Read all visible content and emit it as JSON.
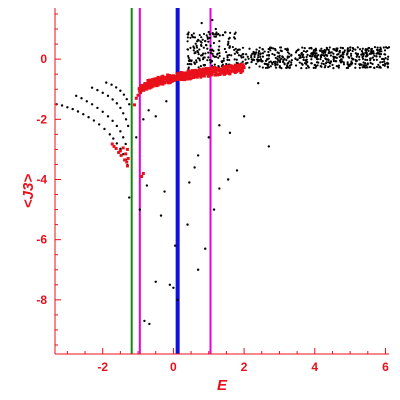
{
  "chart_data": {
    "type": "scatter",
    "xlabel": "E",
    "ylabel": "<J3>",
    "xlim": [
      -3.35,
      6.1
    ],
    "ylim": [
      -9.8,
      1.7
    ],
    "xticks": [
      -2,
      0,
      2,
      4,
      6
    ],
    "xtick_labels": [
      "-2",
      "0",
      "2",
      "4",
      "6"
    ],
    "yticks": [
      0,
      -2,
      -4,
      -6,
      -8
    ],
    "ytick_labels": [
      "0",
      "-2",
      "-4",
      "-6",
      "-8"
    ],
    "colors": {
      "axis": "#e8101a",
      "series_black": "#000000",
      "series_red": "#e8101a"
    },
    "vlines": [
      {
        "x": -1.18,
        "color": "#118811"
      },
      {
        "x": -0.95,
        "color": "#e400e4"
      },
      {
        "x": 0.12,
        "color": "#1010dd"
      },
      {
        "x": 1.05,
        "color": "#e400e4"
      }
    ],
    "series": [
      {
        "color": "#000000",
        "points": [
          [
            -3.3,
            -1.5
          ],
          [
            -3.15,
            -1.54
          ],
          [
            -3.0,
            -1.6
          ],
          [
            -2.85,
            -1.66
          ],
          [
            -2.7,
            -1.74
          ],
          [
            -2.55,
            -1.83
          ],
          [
            -2.4,
            -1.93
          ],
          [
            -2.25,
            -2.04
          ],
          [
            -2.1,
            -2.17
          ],
          [
            -1.95,
            -2.32
          ],
          [
            -1.8,
            -2.5
          ],
          [
            -1.7,
            -2.64
          ],
          [
            -1.6,
            -2.8
          ],
          [
            -1.5,
            -2.98
          ],
          [
            -1.42,
            -3.16
          ],
          [
            -1.35,
            -3.34
          ],
          [
            -1.3,
            -3.52
          ],
          [
            -2.75,
            -1.22
          ],
          [
            -2.6,
            -1.3
          ],
          [
            -2.45,
            -1.4
          ],
          [
            -2.3,
            -1.5
          ],
          [
            -2.15,
            -1.62
          ],
          [
            -2.0,
            -1.75
          ],
          [
            -1.85,
            -1.9
          ],
          [
            -1.72,
            -2.05
          ],
          [
            -1.6,
            -2.22
          ],
          [
            -1.5,
            -2.4
          ],
          [
            -1.42,
            -2.6
          ],
          [
            -1.35,
            -2.82
          ],
          [
            -2.3,
            -0.95
          ],
          [
            -2.15,
            -1.03
          ],
          [
            -2.0,
            -1.12
          ],
          [
            -1.85,
            -1.22
          ],
          [
            -1.72,
            -1.34
          ],
          [
            -1.6,
            -1.47
          ],
          [
            -1.5,
            -1.62
          ],
          [
            -1.42,
            -1.8
          ],
          [
            -1.34,
            -2.0
          ],
          [
            -1.28,
            -2.22
          ],
          [
            -1.9,
            -0.78
          ],
          [
            -1.75,
            -0.85
          ],
          [
            -1.62,
            -0.94
          ],
          [
            -1.5,
            -1.05
          ],
          [
            -1.4,
            -1.18
          ],
          [
            -1.32,
            -1.33
          ],
          [
            -1.25,
            -1.5
          ],
          [
            -1.25,
            -4.6
          ],
          [
            -1.05,
            -2.6
          ],
          [
            -0.85,
            -2.0
          ],
          [
            -0.7,
            -1.7
          ],
          [
            -0.5,
            -1.9
          ],
          [
            -0.2,
            -1.4
          ],
          [
            -0.95,
            -5.0
          ],
          [
            -0.82,
            -8.7
          ],
          [
            -0.75,
            -4.2
          ],
          [
            -0.68,
            -8.8
          ],
          [
            -0.5,
            -7.4
          ],
          [
            -0.35,
            -5.2
          ],
          [
            -0.25,
            -4.4
          ],
          [
            -0.1,
            -7.5
          ],
          [
            0.0,
            -7.6
          ],
          [
            0.12,
            -8.0
          ],
          [
            0.05,
            -6.2
          ],
          [
            0.4,
            -5.5
          ],
          [
            0.45,
            -4.1
          ],
          [
            0.6,
            -3.6
          ],
          [
            0.7,
            -7.0
          ],
          [
            0.9,
            -6.3
          ],
          [
            1.15,
            -5.0
          ],
          [
            1.3,
            -4.3
          ],
          [
            1.55,
            -4.0
          ],
          [
            1.8,
            -3.7
          ],
          [
            0.7,
            -3.2
          ],
          [
            1.0,
            -2.6
          ],
          [
            1.3,
            -2.2
          ],
          [
            1.6,
            -2.45
          ],
          [
            2.0,
            -1.9
          ],
          [
            2.7,
            -2.9
          ],
          [
            2.4,
            -0.8
          ],
          [
            0.8,
            1.2
          ],
          [
            1.1,
            1.3
          ],
          [
            1.2,
            1.0
          ],
          [
            1.4,
            0.8
          ],
          [
            0.9,
            0.6
          ],
          [
            1.0,
            0.9
          ]
        ]
      },
      {
        "color": "#e8101a",
        "points": [
          [
            -1.3,
            -3.0
          ],
          [
            -1.35,
            -3.15
          ],
          [
            -1.42,
            -2.95
          ],
          [
            -1.5,
            -3.05
          ],
          [
            -1.28,
            -3.3
          ],
          [
            -1.48,
            -3.2
          ],
          [
            -1.55,
            -3.1
          ],
          [
            -1.62,
            -2.97
          ],
          [
            -1.68,
            -2.9
          ],
          [
            -1.73,
            -2.82
          ],
          [
            -1.38,
            -3.35
          ],
          [
            -1.32,
            -3.42
          ],
          [
            -1.3,
            -3.55
          ],
          [
            -1.05,
            -1.3
          ],
          [
            -1.1,
            -1.52
          ],
          [
            -0.95,
            -1.05
          ],
          [
            -1.0,
            -1.2
          ],
          [
            -0.85,
            -3.8
          ],
          [
            -0.9,
            -3.9
          ],
          [
            -0.92,
            -1.0
          ],
          [
            -0.97,
            -0.98
          ],
          [
            -0.5,
            -0.72
          ],
          [
            -0.3,
            -0.66
          ],
          [
            0.0,
            -0.55
          ],
          [
            0.3,
            -0.5
          ],
          [
            0.6,
            -0.45
          ],
          [
            1.0,
            -0.38
          ],
          [
            1.4,
            -0.33
          ],
          [
            1.8,
            -0.3
          ],
          [
            2.0,
            -0.28
          ]
        ]
      }
    ],
    "band_black": {
      "x_from": 0.4,
      "x_to": 6.1,
      "y_center": 0.05,
      "spread": 0.35
    },
    "band_red": {
      "x_from": -0.95,
      "x_to": 2.0
    }
  }
}
